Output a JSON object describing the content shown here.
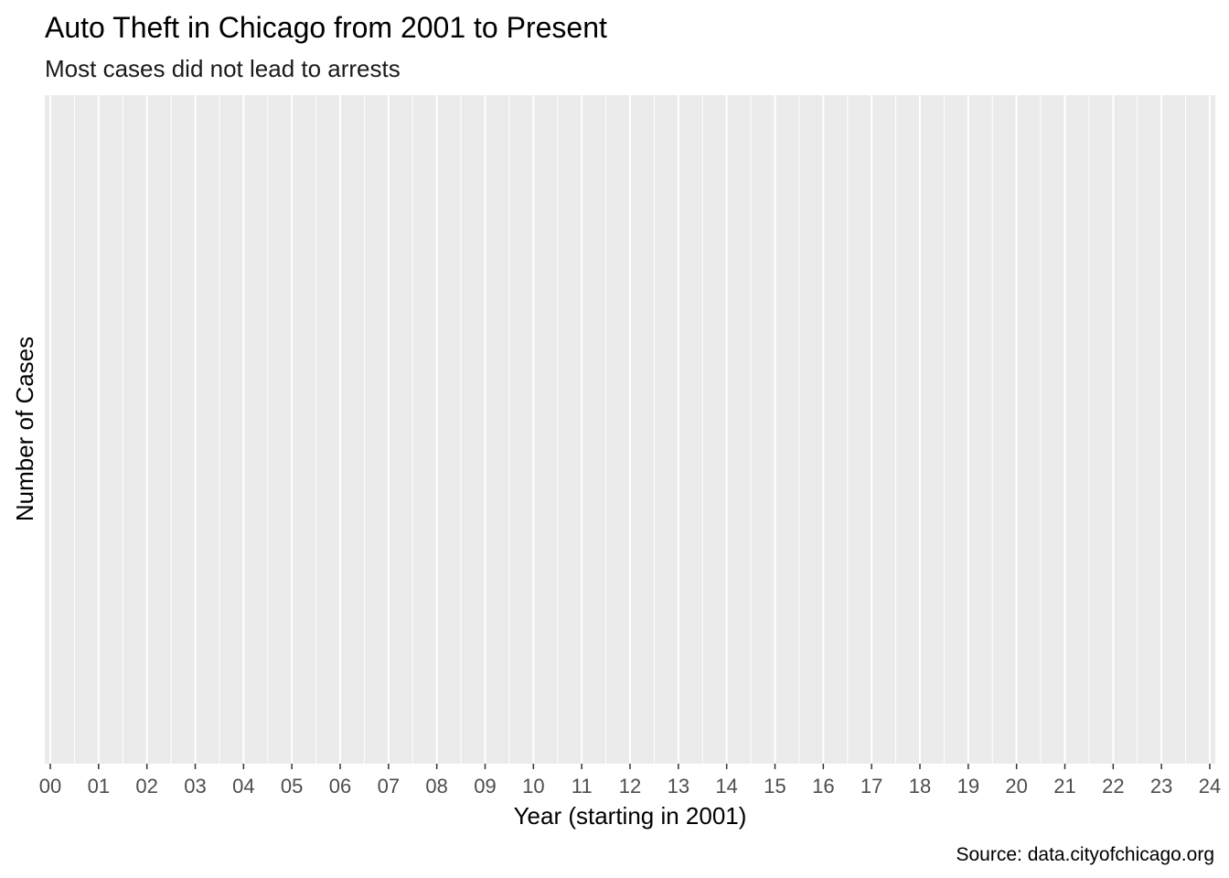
{
  "chart_data": {
    "type": "bar",
    "title": "Auto Theft in Chicago from 2001 to Present",
    "subtitle": "Most cases did not lead to arrests",
    "xlabel": "Year (starting in 2001)",
    "ylabel": "Number of Cases",
    "caption": "Source: data.cityofchicago.org",
    "x_tick_labels": [
      "00",
      "01",
      "02",
      "03",
      "04",
      "05",
      "06",
      "07",
      "08",
      "09",
      "10",
      "11",
      "12",
      "13",
      "14",
      "15",
      "16",
      "17",
      "18",
      "19",
      "20",
      "21",
      "22",
      "23",
      "24"
    ],
    "x_domain": [
      0,
      24
    ],
    "series": [],
    "y_ticks_visible": false,
    "grid": true,
    "panel_background": "#ebebeb",
    "grid_color": "#ffffff"
  }
}
